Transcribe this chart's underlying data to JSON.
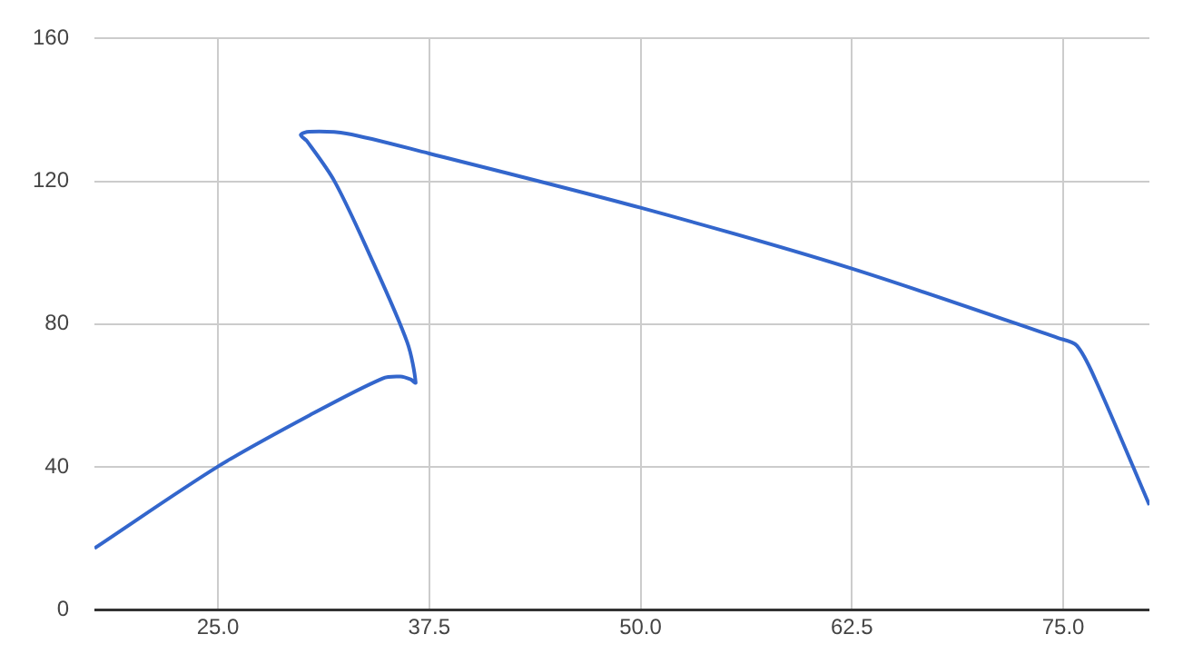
{
  "chart_data": {
    "type": "line",
    "series": [
      {
        "color": "#3366cc",
        "x": [
          17.7,
          25.0,
          30.4,
          34.75,
          35.8,
          36.4,
          36.7,
          36.2,
          34.0,
          31.9,
          30.26,
          29.9,
          30.4,
          32.6,
          37.5,
          50.0,
          62.4,
          74.7,
          75.8,
          76.9,
          80.1
        ],
        "values": [
          17.2,
          40.1,
          54.4,
          64.8,
          65.3,
          64.5,
          63.6,
          74.9,
          99.2,
          120,
          131.3,
          133,
          133.9,
          133.4,
          127.8,
          112.6,
          95.7,
          76.1,
          74,
          64.5,
          29.3
        ]
      }
    ],
    "xlim": [
      17.7,
      80.1
    ],
    "xticks": [
      {
        "value": 25,
        "label": "25.0"
      },
      {
        "value": 37.5,
        "label": "37.5"
      },
      {
        "value": 50,
        "label": "50.0"
      },
      {
        "value": 62.5,
        "label": "62.5"
      },
      {
        "value": 75,
        "label": "75.0"
      }
    ],
    "ylim": [
      0,
      160
    ],
    "yticks": [
      0,
      40,
      80,
      120,
      160
    ],
    "grid": true,
    "legend": false,
    "marker": "none",
    "line_style": "solid"
  }
}
